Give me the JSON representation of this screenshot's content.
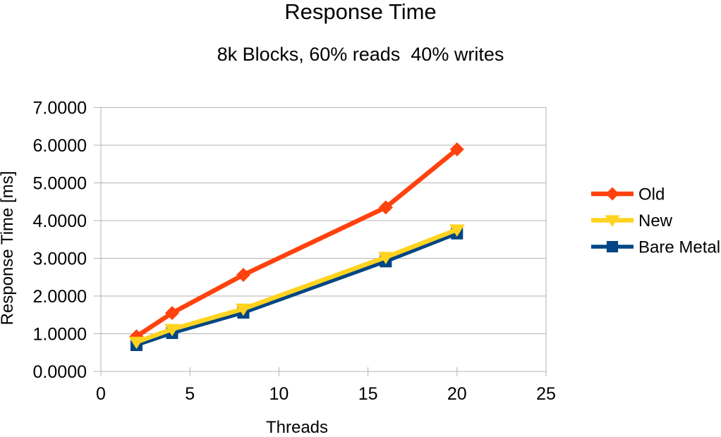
{
  "chart_data": {
    "type": "line",
    "title": "Response Time",
    "subtitle": "8k Blocks, 60% reads  40% writes",
    "xlabel": "Threads",
    "ylabel": "Response Time [ms]",
    "x": [
      2,
      4,
      8,
      16,
      20
    ],
    "series": [
      {
        "name": "Old",
        "color": "#FF420E",
        "marker": "diamond",
        "values": [
          0.93,
          1.55,
          2.56,
          4.35,
          5.89
        ]
      },
      {
        "name": "New",
        "color": "#FFD320",
        "marker": "triangle-down",
        "values": [
          0.78,
          1.12,
          1.66,
          3.03,
          3.76
        ]
      },
      {
        "name": "Bare Metal",
        "color": "#004586",
        "marker": "square",
        "values": [
          0.7,
          1.02,
          1.56,
          2.92,
          3.66
        ]
      }
    ],
    "xlim": [
      0,
      25
    ],
    "ylim": [
      0,
      7
    ],
    "x_tick_labels": [
      "0",
      "5",
      "10",
      "15",
      "20",
      "25"
    ],
    "y_tick_labels": [
      "0.0000",
      "1.0000",
      "2.0000",
      "3.0000",
      "4.0000",
      "5.0000",
      "6.0000",
      "7.0000"
    ],
    "grid": "horizontal",
    "legend_position": "right",
    "axis_color": "#B3B3B3",
    "text_color": "#000000",
    "background": "#FFFFFF"
  }
}
